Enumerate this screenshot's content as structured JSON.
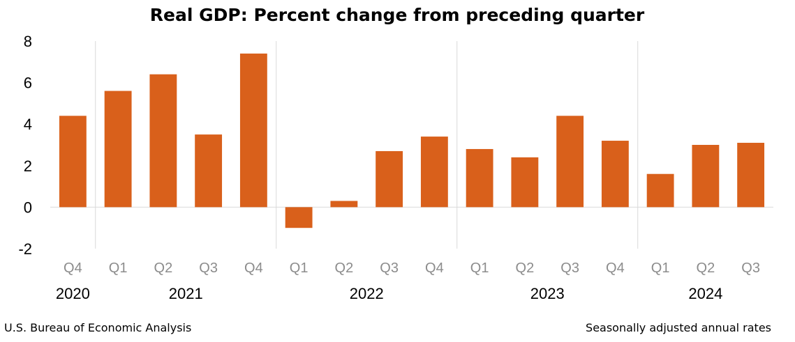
{
  "chart_data": {
    "type": "bar",
    "title": "Real GDP:  Percent change from preceding quarter",
    "xlabel": "",
    "ylabel": "",
    "ylim": [
      -2,
      8
    ],
    "y_ticks": [
      "-2",
      "0",
      "2",
      "4",
      "6",
      "8"
    ],
    "categories": [
      "Q4",
      "Q1",
      "Q2",
      "Q3",
      "Q4",
      "Q1",
      "Q2",
      "Q3",
      "Q4",
      "Q1",
      "Q2",
      "Q3",
      "Q4",
      "Q1",
      "Q2",
      "Q3"
    ],
    "values": [
      4.4,
      5.6,
      6.4,
      3.5,
      7.4,
      -1.0,
      0.3,
      2.7,
      3.4,
      2.8,
      2.4,
      4.4,
      3.2,
      1.6,
      3.0,
      3.1
    ],
    "year_groups": [
      {
        "label": "2020",
        "start": 0,
        "count": 1
      },
      {
        "label": "2021",
        "start": 1,
        "count": 4
      },
      {
        "label": "2022",
        "start": 5,
        "count": 4
      },
      {
        "label": "2023",
        "start": 9,
        "count": 4
      },
      {
        "label": "2024",
        "start": 13,
        "count": 3
      }
    ],
    "grid": false,
    "bar_color": "#d9601b",
    "source": "U.S. Bureau of Economic Analysis",
    "note": "Seasonally adjusted annual rates"
  }
}
